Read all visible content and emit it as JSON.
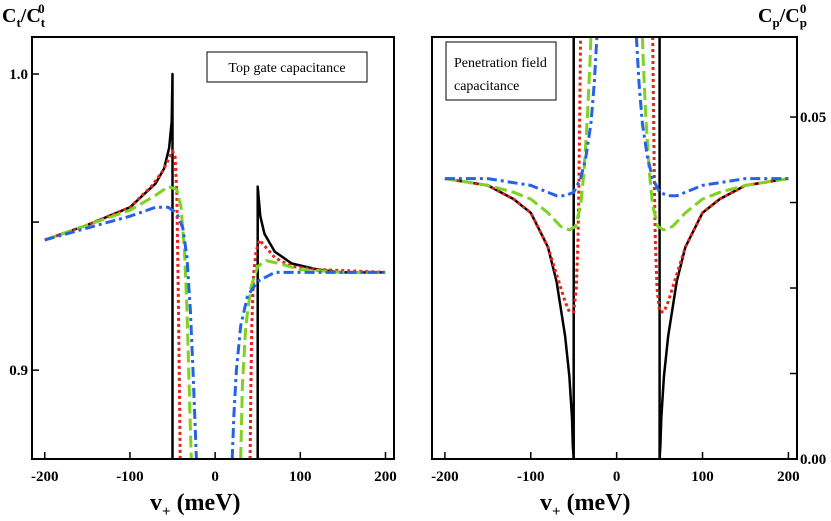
{
  "chart_data": [
    {
      "type": "line",
      "ylabel": "C_t/C_t^0",
      "xlabel": "v_+ (meV)",
      "annotation": "Top gate capacitance",
      "xlim": [
        -215,
        210
      ],
      "ylim": [
        0.87,
        1.0125
      ],
      "x_ticks": [
        -200,
        -100,
        0,
        100,
        200
      ],
      "x_tick_labels": [
        "-200",
        "-100",
        "0",
        "100",
        "200"
      ],
      "y_ticks_labeled": [
        0.9,
        1.0
      ],
      "y_tick_labels": [
        "0.9",
        "1.0"
      ],
      "y_ticks_minor": [
        0.95
      ],
      "series": [
        {
          "name": "black solid",
          "color": "#000000",
          "dash": "solid",
          "points": [
            [
              -200,
              0.944
            ],
            [
              -150,
              0.949
            ],
            [
              -100,
              0.955
            ],
            [
              -70,
              0.963
            ],
            [
              -60,
              0.968
            ],
            [
              -54,
              0.975
            ],
            [
              -51,
              0.984
            ],
            [
              -50,
              1.0
            ],
            [
              -50,
              0.87
            ]
          ]
        },
        {
          "name": "black solid (right)",
          "color": "#000000",
          "dash": "solid",
          "points": [
            [
              50,
              0.87
            ],
            [
              50,
              0.962
            ],
            [
              53,
              0.952
            ],
            [
              58,
              0.946
            ],
            [
              70,
              0.94
            ],
            [
              90,
              0.936
            ],
            [
              120,
              0.934
            ],
            [
              150,
              0.933
            ],
            [
              200,
              0.933
            ]
          ]
        },
        {
          "name": "red dotted",
          "color": "#e8231b",
          "dash": "dot",
          "points": [
            [
              -200,
              0.944
            ],
            [
              -150,
              0.949
            ],
            [
              -100,
              0.955
            ],
            [
              -75,
              0.962
            ],
            [
              -62,
              0.967
            ],
            [
              -55,
              0.971
            ],
            [
              -50,
              0.974
            ],
            [
              -47,
              0.972
            ],
            [
              -45,
              0.96
            ],
            [
              -44,
              0.94
            ],
            [
              -43,
              0.92
            ],
            [
              -42,
              0.895
            ],
            [
              -41,
              0.87
            ]
          ]
        },
        {
          "name": "red dotted (right)",
          "color": "#e8231b",
          "dash": "dot",
          "points": [
            [
              41,
              0.87
            ],
            [
              42,
              0.895
            ],
            [
              43,
              0.915
            ],
            [
              45,
              0.932
            ],
            [
              48,
              0.94
            ],
            [
              52,
              0.944
            ],
            [
              58,
              0.942
            ],
            [
              70,
              0.938
            ],
            [
              90,
              0.935
            ],
            [
              120,
              0.934
            ],
            [
              200,
              0.933
            ]
          ]
        },
        {
          "name": "green dashed",
          "color": "#7ed321",
          "dash": "dash",
          "points": [
            [
              -200,
              0.944
            ],
            [
              -150,
              0.949
            ],
            [
              -100,
              0.954
            ],
            [
              -70,
              0.959
            ],
            [
              -55,
              0.962
            ],
            [
              -45,
              0.961
            ],
            [
              -40,
              0.955
            ],
            [
              -36,
              0.94
            ],
            [
              -33,
              0.92
            ],
            [
              -31,
              0.9
            ],
            [
              -29,
              0.88
            ],
            [
              -28,
              0.87
            ]
          ]
        },
        {
          "name": "green dashed (right)",
          "color": "#7ed321",
          "dash": "dash",
          "points": [
            [
              30,
              0.87
            ],
            [
              32,
              0.895
            ],
            [
              36,
              0.915
            ],
            [
              42,
              0.928
            ],
            [
              50,
              0.935
            ],
            [
              60,
              0.937
            ],
            [
              75,
              0.936
            ],
            [
              100,
              0.934
            ],
            [
              150,
              0.933
            ],
            [
              200,
              0.933
            ]
          ]
        },
        {
          "name": "blue dash-dot",
          "color": "#2462e6",
          "dash": "dashdot",
          "points": [
            [
              -200,
              0.944
            ],
            [
              -150,
              0.948
            ],
            [
              -100,
              0.952
            ],
            [
              -70,
              0.955
            ],
            [
              -55,
              0.955
            ],
            [
              -45,
              0.953
            ],
            [
              -38,
              0.948
            ],
            [
              -33,
              0.938
            ],
            [
              -29,
              0.92
            ],
            [
              -26,
              0.9
            ],
            [
              -24,
              0.885
            ],
            [
              -22,
              0.87
            ]
          ]
        },
        {
          "name": "blue dash-dot (right)",
          "color": "#2462e6",
          "dash": "dashdot",
          "points": [
            [
              20,
              0.87
            ],
            [
              22,
              0.885
            ],
            [
              25,
              0.9
            ],
            [
              30,
              0.915
            ],
            [
              38,
              0.925
            ],
            [
              50,
              0.93
            ],
            [
              70,
              0.933
            ],
            [
              100,
              0.933
            ],
            [
              200,
              0.933
            ]
          ]
        }
      ]
    },
    {
      "type": "line",
      "ylabel": "C_p/C_p^0",
      "xlabel": "v_+ (meV)",
      "annotation": "Penetration field capacitance",
      "annotation_lines": [
        "Penetration field",
        "capacitance"
      ],
      "xlim": [
        -215,
        210
      ],
      "ylim": [
        0.0,
        0.0617
      ],
      "x_ticks": [
        -200,
        -100,
        0,
        100,
        200
      ],
      "x_tick_labels": [
        "-200",
        "-100",
        "0",
        "100",
        "200"
      ],
      "y_ticks_labeled": [
        0.0,
        0.05
      ],
      "y_tick_labels": [
        "0.00",
        "0.05"
      ],
      "y_ticks_minor": [
        0.0125,
        0.025,
        0.0375
      ],
      "series": [
        {
          "name": "black solid",
          "color": "#000000",
          "dash": "solid",
          "points": [
            [
              -200,
              0.041
            ],
            [
              -150,
              0.04
            ],
            [
              -120,
              0.038
            ],
            [
              -100,
              0.036
            ],
            [
              -80,
              0.031
            ],
            [
              -70,
              0.026
            ],
            [
              -60,
              0.018
            ],
            [
              -55,
              0.012
            ],
            [
              -52,
              0.006
            ],
            [
              -51,
              0.002
            ],
            [
              -50,
              0.0
            ],
            [
              -50,
              0.0617
            ]
          ]
        },
        {
          "name": "black solid (right)",
          "color": "#000000",
          "dash": "solid",
          "points": [
            [
              50,
              0.0617
            ],
            [
              50,
              0.0
            ],
            [
              51,
              0.002
            ],
            [
              52,
              0.006
            ],
            [
              55,
              0.012
            ],
            [
              60,
              0.018
            ],
            [
              70,
              0.026
            ],
            [
              80,
              0.031
            ],
            [
              100,
              0.036
            ],
            [
              120,
              0.038
            ],
            [
              150,
              0.04
            ],
            [
              200,
              0.041
            ]
          ]
        },
        {
          "name": "red dotted",
          "color": "#e8231b",
          "dash": "dot",
          "points": [
            [
              -200,
              0.041
            ],
            [
              -150,
              0.04
            ],
            [
              -120,
              0.038
            ],
            [
              -100,
              0.036
            ],
            [
              -80,
              0.031
            ],
            [
              -70,
              0.027
            ],
            [
              -60,
              0.023
            ],
            [
              -55,
              0.0215
            ],
            [
              -50,
              0.0215
            ],
            [
              -47,
              0.025
            ],
            [
              -45,
              0.032
            ],
            [
              -44,
              0.04
            ],
            [
              -43,
              0.05
            ],
            [
              -42,
              0.0617
            ]
          ]
        },
        {
          "name": "red dotted (right)",
          "color": "#e8231b",
          "dash": "dot",
          "points": [
            [
              42,
              0.0617
            ],
            [
              43,
              0.05
            ],
            [
              44,
              0.04
            ],
            [
              45,
              0.032
            ],
            [
              47,
              0.025
            ],
            [
              50,
              0.0215
            ],
            [
              55,
              0.0215
            ],
            [
              60,
              0.023
            ],
            [
              70,
              0.027
            ],
            [
              80,
              0.031
            ],
            [
              100,
              0.036
            ],
            [
              120,
              0.038
            ],
            [
              150,
              0.04
            ],
            [
              200,
              0.041
            ]
          ]
        },
        {
          "name": "green dashed",
          "color": "#7ed321",
          "dash": "dash",
          "points": [
            [
              -200,
              0.041
            ],
            [
              -150,
              0.04
            ],
            [
              -120,
              0.039
            ],
            [
              -100,
              0.038
            ],
            [
              -80,
              0.036
            ],
            [
              -65,
              0.034
            ],
            [
              -55,
              0.0335
            ],
            [
              -48,
              0.034
            ],
            [
              -42,
              0.037
            ],
            [
              -38,
              0.042
            ],
            [
              -34,
              0.05
            ],
            [
              -31,
              0.058
            ],
            [
              -30,
              0.0617
            ]
          ]
        },
        {
          "name": "green dashed (right)",
          "color": "#7ed321",
          "dash": "dash",
          "points": [
            [
              30,
              0.0617
            ],
            [
              31,
              0.058
            ],
            [
              34,
              0.05
            ],
            [
              38,
              0.042
            ],
            [
              42,
              0.037
            ],
            [
              48,
              0.034
            ],
            [
              55,
              0.0335
            ],
            [
              65,
              0.034
            ],
            [
              80,
              0.036
            ],
            [
              100,
              0.038
            ],
            [
              120,
              0.039
            ],
            [
              150,
              0.04
            ],
            [
              200,
              0.041
            ]
          ]
        },
        {
          "name": "blue dash-dot",
          "color": "#2462e6",
          "dash": "dashdot",
          "points": [
            [
              -200,
              0.041
            ],
            [
              -150,
              0.041
            ],
            [
              -100,
              0.04
            ],
            [
              -80,
              0.039
            ],
            [
              -70,
              0.0385
            ],
            [
              -60,
              0.0385
            ],
            [
              -50,
              0.039
            ],
            [
              -42,
              0.041
            ],
            [
              -36,
              0.044
            ],
            [
              -30,
              0.049
            ],
            [
              -26,
              0.055
            ],
            [
              -23,
              0.0617
            ]
          ]
        },
        {
          "name": "blue dash-dot (right)",
          "color": "#2462e6",
          "dash": "dashdot",
          "points": [
            [
              23,
              0.0617
            ],
            [
              26,
              0.055
            ],
            [
              30,
              0.049
            ],
            [
              36,
              0.044
            ],
            [
              42,
              0.041
            ],
            [
              50,
              0.039
            ],
            [
              60,
              0.0385
            ],
            [
              70,
              0.0385
            ],
            [
              80,
              0.039
            ],
            [
              100,
              0.04
            ],
            [
              150,
              0.041
            ],
            [
              200,
              0.041
            ]
          ]
        }
      ]
    }
  ],
  "left_panel": {
    "ylabel_main": "C",
    "ylabel_sub": "t",
    "ylabel_den": "/C",
    "ylabel_den_sub": "t",
    "ylabel_den_sup": "0",
    "legend": "Top gate capacitance"
  },
  "right_panel": {
    "ylabel_main": "C",
    "ylabel_sub": "p",
    "ylabel_den": "/C",
    "ylabel_den_sub": "p",
    "ylabel_den_sup": "0",
    "legend_line1": "Penetration field",
    "legend_line2": "capacitance"
  },
  "xlabel": {
    "main": "v",
    "sub": "+",
    "unit": " (meV)"
  }
}
